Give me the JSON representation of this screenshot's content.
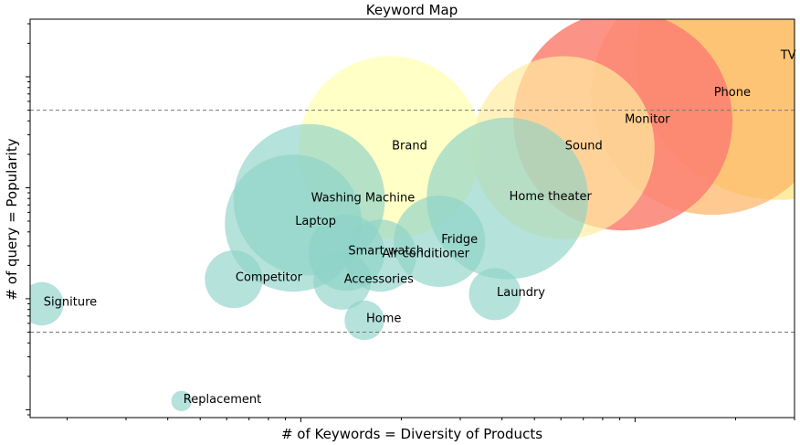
{
  "chart_data": {
    "type": "bubble-scatter",
    "title": "Keyword Map",
    "xlabel": "# of Keywords = Diversity of Products",
    "ylabel": "# of query = Popularity",
    "x_scale": "log",
    "y_scale": "log",
    "xlim": [
      1.55,
      300
    ],
    "ylim": [
      0.085,
      330
    ],
    "reference_lines_y": [
      50,
      0.5
    ],
    "series": [
      {
        "name": "TV",
        "x": 269,
        "y": 150,
        "size": 3900,
        "color": "#ffe066",
        "opacity": 0.6
      },
      {
        "name": "Phone",
        "x": 170,
        "y": 70,
        "size": 2800,
        "color": "#fdb462",
        "opacity": 0.7
      },
      {
        "name": "Monitor",
        "x": 92,
        "y": 40,
        "size": 2300,
        "color": "#fb8072",
        "opacity": 0.85
      },
      {
        "name": "Sound",
        "x": 61,
        "y": 23,
        "size": 1600,
        "color": "#ffeda0",
        "opacity": 0.7
      },
      {
        "name": "Brand",
        "x": 18.5,
        "y": 23,
        "size": 1600,
        "color": "#ffffb3",
        "opacity": 0.75
      },
      {
        "name": "Home theater",
        "x": 41.5,
        "y": 8,
        "size": 1250,
        "color": "#8dd3c7",
        "opacity": 0.65
      },
      {
        "name": "Washing Machine",
        "x": 10.6,
        "y": 7.8,
        "size": 1100,
        "color": "#8dd3c7",
        "opacity": 0.65
      },
      {
        "name": "Laptop",
        "x": 9.5,
        "y": 4.8,
        "size": 900,
        "color": "#8dd3c7",
        "opacity": 0.65
      },
      {
        "name": "Fridge",
        "x": 26,
        "y": 3.3,
        "size": 400,
        "color": "#8dd3c7",
        "opacity": 0.65
      },
      {
        "name": "Smart watch",
        "x": 13.7,
        "y": 2.6,
        "size": 280,
        "color": "#8dd3c7",
        "opacity": 0.65
      },
      {
        "name": "Air conditioner",
        "x": 17.3,
        "y": 2.45,
        "size": 250,
        "color": "#8dd3c7",
        "opacity": 0.65
      },
      {
        "name": "Competitor",
        "x": 6.3,
        "y": 1.5,
        "size": 160,
        "color": "#8dd3c7",
        "opacity": 0.65
      },
      {
        "name": "Accessories",
        "x": 13.3,
        "y": 1.45,
        "size": 160,
        "color": "#8dd3c7",
        "opacity": 0.65
      },
      {
        "name": "Laundry",
        "x": 38.1,
        "y": 1.1,
        "size": 130,
        "color": "#8dd3c7",
        "opacity": 0.65
      },
      {
        "name": "Signiture",
        "x": 1.68,
        "y": 0.9,
        "size": 90,
        "color": "#8dd3c7",
        "opacity": 0.65
      },
      {
        "name": "Home",
        "x": 15.5,
        "y": 0.64,
        "size": 75,
        "color": "#8dd3c7",
        "opacity": 0.65
      },
      {
        "name": "Replacement",
        "x": 4.4,
        "y": 0.12,
        "size": 20,
        "color": "#8dd3c7",
        "opacity": 0.65
      }
    ]
  }
}
